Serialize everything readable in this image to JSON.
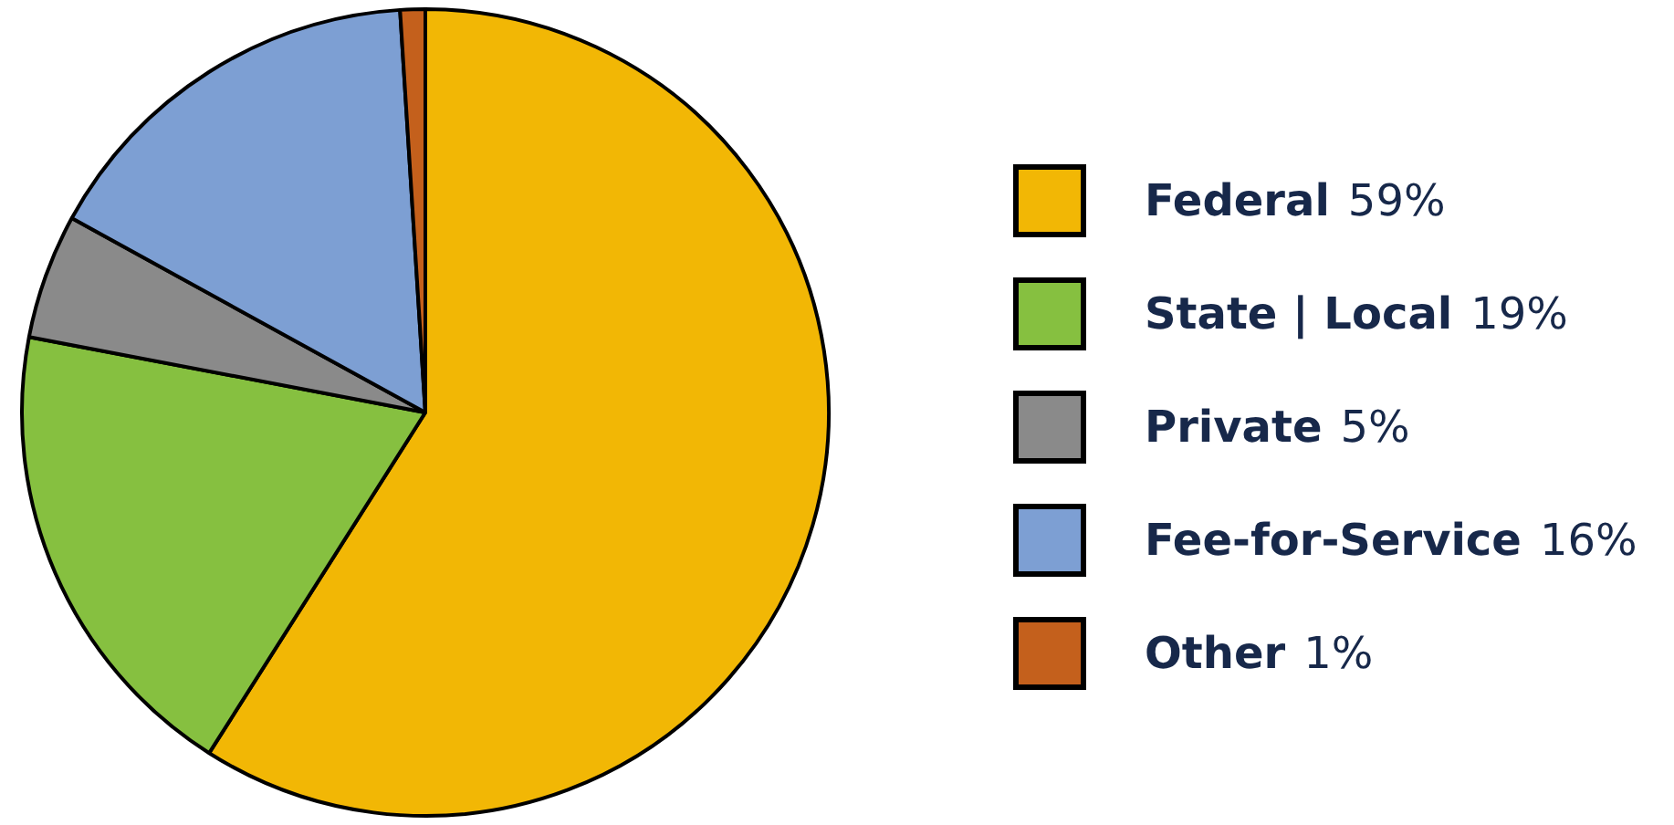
{
  "chart_data": {
    "type": "pie",
    "categories": [
      "Federal",
      "State | Local",
      "Private",
      "Fee-for-Service",
      "Other"
    ],
    "values": [
      59,
      19,
      5,
      16,
      1
    ],
    "colors": [
      "#f2b705",
      "#86c040",
      "#8a8a8a",
      "#7d9fd3",
      "#c4601c"
    ],
    "value_labels": [
      "59%",
      "19%",
      "5%",
      "16%",
      "1%"
    ],
    "legend": "right"
  }
}
